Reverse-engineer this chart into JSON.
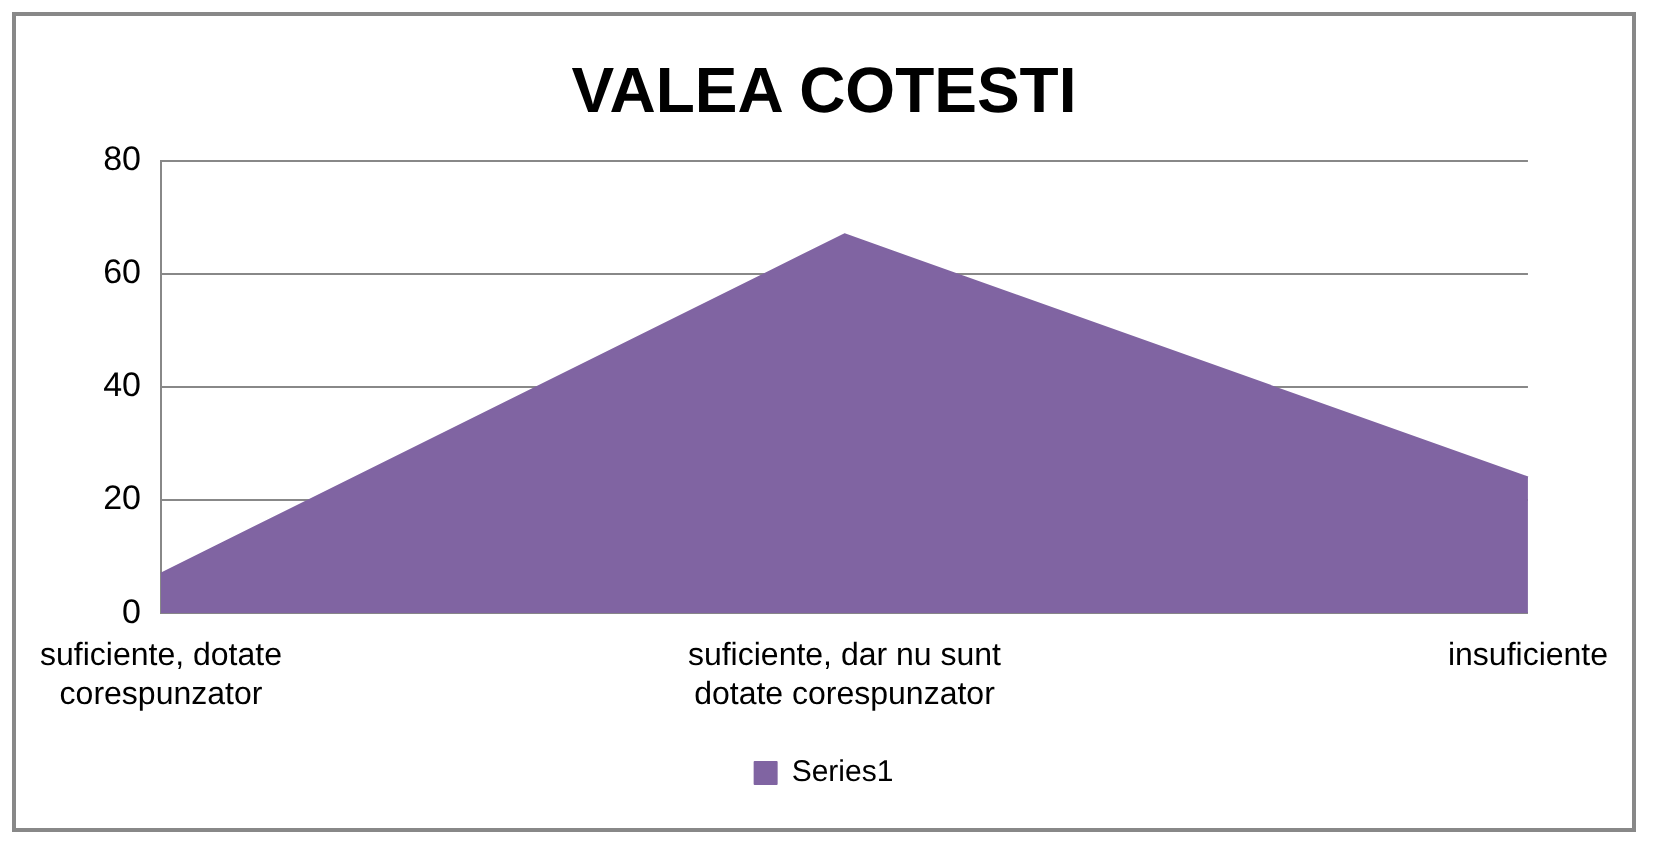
{
  "chart_data": {
    "type": "area",
    "title": "VALEA COTESTI",
    "categories": [
      "suficiente, dotate corespunzator",
      "suficiente, dar nu sunt dotate corespunzator",
      "insuficiente"
    ],
    "series": [
      {
        "name": "Series1",
        "color": "#8064a2",
        "values": [
          7,
          67,
          24
        ]
      }
    ],
    "ylim": [
      0,
      80
    ],
    "yticks": [
      0,
      20,
      40,
      60,
      80
    ],
    "grid": "y",
    "legend": "bottom"
  }
}
